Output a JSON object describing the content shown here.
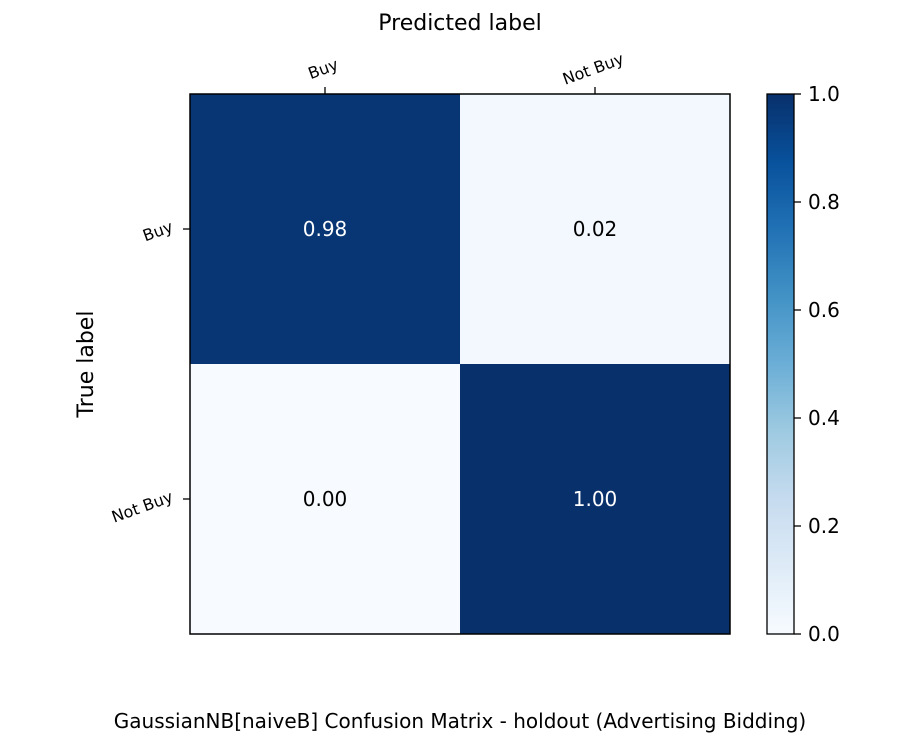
{
  "chart_data": {
    "type": "heatmap",
    "title": "GaussianNB[naiveB] Confusion Matrix - holdout (Advertising Bidding)",
    "xlabel": "Predicted label",
    "ylabel": "True label",
    "x_categories": [
      "Buy",
      "Not Buy"
    ],
    "y_categories": [
      "Buy",
      "Not Buy"
    ],
    "values": [
      [
        0.98,
        0.02
      ],
      [
        0.0,
        1.0
      ]
    ],
    "value_labels": [
      [
        "0.98",
        "0.02"
      ],
      [
        "0.00",
        "1.00"
      ]
    ],
    "colorbar": {
      "range": [
        0.0,
        1.0
      ],
      "ticks": [
        "0.0",
        "0.2",
        "0.4",
        "0.6",
        "0.8",
        "1.0"
      ]
    },
    "colormap": [
      "#f7fbff",
      "#deebf7",
      "#c6dbef",
      "#9ecae1",
      "#6baed6",
      "#4292c6",
      "#2171b5",
      "#08519c",
      "#08306b"
    ],
    "text_colors": {
      "dark": "#ffffff",
      "light": "#000000"
    }
  }
}
